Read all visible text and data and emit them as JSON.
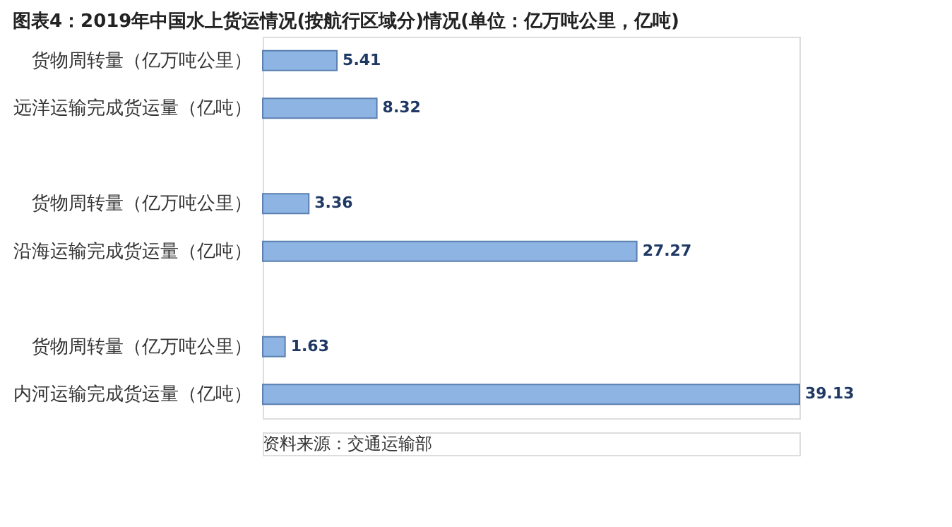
{
  "chart_data": {
    "type": "bar",
    "orientation": "horizontal",
    "title": "图表4：2019年中国水上货运情况(按航行区域分)情况(单位：亿万吨公里，亿吨)",
    "categories": [
      "货物周转量（亿万吨公里）",
      "远洋运输完成货运量（亿吨）",
      null,
      "货物周转量（亿万吨公里）",
      "沿海运输完成货运量（亿吨）",
      null,
      "货物周转量（亿万吨公里）",
      "内河运输完成货运量（亿吨）"
    ],
    "values": [
      5.41,
      8.32,
      null,
      3.36,
      27.27,
      null,
      1.63,
      39.13
    ],
    "color": "#8db4e2",
    "data_labels": true,
    "annotations": [
      "资料来源：交通运输部"
    ]
  }
}
